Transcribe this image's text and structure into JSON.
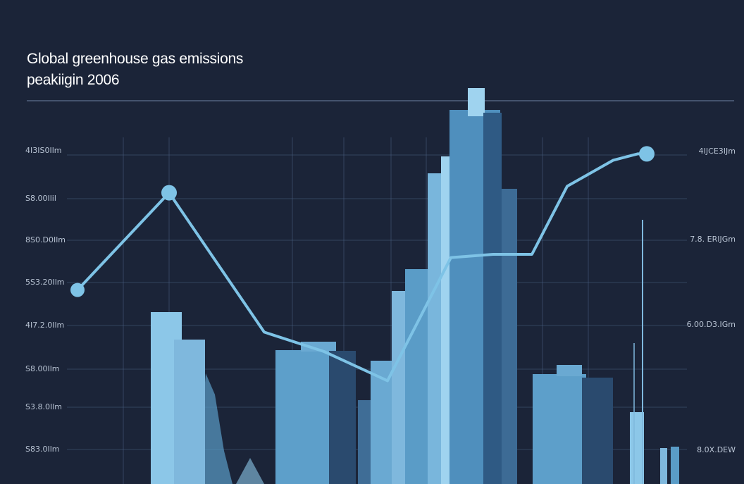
{
  "colors": {
    "background": "#1b2438",
    "line": "#7ec3e6",
    "grid": "#4a5f80",
    "building_light": "#8cc7e8",
    "building_mid": "#5a9cc7",
    "building_dark": "#2a4a6e"
  },
  "chart_data": {
    "type": "line",
    "title": "Global greenhouse gas emissions",
    "subtitle": "peakiigin 2006",
    "ylim": [
      0,
      10
    ],
    "left_tick_labels": [
      "4I3IS0Ilm",
      "S8.00Ilil",
      "8S0.D0Ilm",
      "5S3.20Ilm",
      "4I7.2.0Ilm",
      "S8.00Ilm",
      "S3.8.0Ilm",
      "S83.0Ilm"
    ],
    "right_tick_labels": [
      "4IJCE3IJm",
      "7.8. ERIJGm",
      "6.00.D3.IGm",
      "8.0X.DEW"
    ],
    "grid": true,
    "series": [
      {
        "x": [
          0,
          1,
          2,
          3,
          4,
          5,
          6,
          7,
          8,
          9,
          10,
          11
        ],
        "values": [
          5.4,
          8.4,
          4.1,
          3.5,
          2.6,
          6.4,
          6.5,
          6.5,
          8.6,
          9.4,
          9.6,
          9.6
        ]
      }
    ]
  }
}
